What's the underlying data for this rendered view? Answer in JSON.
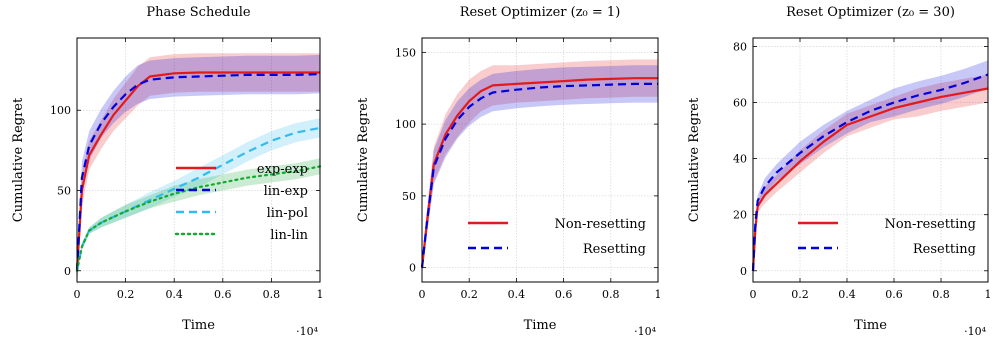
{
  "chart_data": [
    {
      "type": "line",
      "title": "Phase Schedule",
      "xlabel": "Time",
      "ylabel": "Cumulative Regret",
      "x_multiplier": "·10⁴",
      "xlim": [
        0,
        1
      ],
      "ylim": [
        -7,
        145
      ],
      "xticks": [
        "0",
        "0.2",
        "0.4",
        "0.6",
        "0.8",
        "1"
      ],
      "yticks": [
        0,
        50,
        100
      ],
      "grid": true,
      "legend_position": "bottom-right",
      "series": [
        {
          "name": "exp-exp",
          "color": "#e31a1c",
          "dash": "solid",
          "x": [
            0,
            0.02,
            0.05,
            0.1,
            0.15,
            0.2,
            0.25,
            0.3,
            0.4,
            0.5,
            0.6,
            0.7,
            0.8,
            0.9,
            1.0
          ],
          "y": [
            0,
            50,
            72,
            85,
            97,
            106,
            115,
            121,
            123,
            123.5,
            123.5,
            123.5,
            123.5,
            123.5,
            123.5
          ],
          "band": [
            10,
            10,
            9,
            9,
            10,
            11,
            12,
            12,
            12,
            12,
            12,
            12,
            12,
            12,
            12
          ]
        },
        {
          "name": "lin-exp",
          "color": "#0000dd",
          "dash": "dash",
          "x": [
            0,
            0.02,
            0.05,
            0.1,
            0.15,
            0.2,
            0.25,
            0.3,
            0.4,
            0.5,
            0.6,
            0.7,
            0.8,
            0.9,
            1.0
          ],
          "y": [
            0,
            58,
            78,
            92,
            102,
            110,
            116,
            119,
            120.5,
            121,
            121.5,
            122,
            122,
            122,
            122.5
          ],
          "band": [
            10,
            10,
            9,
            9,
            10,
            11,
            12,
            12,
            12,
            12,
            12,
            12,
            12,
            12,
            12
          ]
        },
        {
          "name": "lin-pol",
          "color": "#33bbee",
          "dash": "dash",
          "x": [
            0,
            0.02,
            0.05,
            0.1,
            0.2,
            0.3,
            0.4,
            0.5,
            0.6,
            0.7,
            0.8,
            0.9,
            1.0
          ],
          "y": [
            0,
            15,
            25,
            30,
            37,
            44,
            51,
            58,
            66,
            74,
            81,
            86,
            89
          ],
          "band": [
            2,
            2,
            2,
            3,
            4,
            5,
            5,
            6,
            6,
            6,
            6,
            6,
            6
          ]
        },
        {
          "name": "lin-lin",
          "color": "#11aa33",
          "dash": "dot",
          "x": [
            0,
            0.02,
            0.05,
            0.1,
            0.2,
            0.3,
            0.4,
            0.5,
            0.6,
            0.7,
            0.8,
            0.9,
            1.0
          ],
          "y": [
            0,
            15,
            25,
            30,
            37,
            43,
            48,
            52,
            55,
            58,
            60,
            62,
            65
          ],
          "band": [
            2,
            2,
            2,
            3,
            4,
            4,
            5,
            5,
            5,
            5,
            5,
            5,
            5
          ]
        }
      ]
    },
    {
      "type": "line",
      "title": "Reset Optimizer (z₀ = 1)",
      "xlabel": "Time",
      "ylabel": "Cumulative Regret",
      "x_multiplier": "·10⁴",
      "xlim": [
        0,
        1
      ],
      "ylim": [
        -10,
        160
      ],
      "xticks": [
        "0",
        "0.2",
        "0.4",
        "0.6",
        "0.8",
        "1"
      ],
      "yticks": [
        0,
        50,
        100,
        150
      ],
      "grid": true,
      "legend_position": "bottom-right",
      "series": [
        {
          "name": "Non-resetting",
          "color": "#e31a1c",
          "dash": "solid",
          "x": [
            0,
            0.02,
            0.05,
            0.1,
            0.15,
            0.2,
            0.25,
            0.3,
            0.4,
            0.5,
            0.6,
            0.7,
            0.8,
            0.9,
            1.0
          ],
          "y": [
            0,
            30,
            72,
            93,
            106,
            116,
            123,
            127,
            128,
            129,
            130,
            131,
            131.5,
            132,
            132
          ],
          "band": [
            5,
            8,
            12,
            14,
            15,
            15,
            14,
            14,
            13,
            13,
            13,
            13,
            13,
            13,
            13
          ]
        },
        {
          "name": "Resetting",
          "color": "#0000dd",
          "dash": "dash",
          "x": [
            0,
            0.02,
            0.05,
            0.1,
            0.15,
            0.2,
            0.25,
            0.3,
            0.4,
            0.5,
            0.6,
            0.7,
            0.8,
            0.9,
            1.0
          ],
          "y": [
            0,
            30,
            70,
            90,
            103,
            112,
            118,
            122,
            124,
            125.5,
            126.5,
            127,
            127.5,
            128,
            128
          ],
          "band": [
            5,
            8,
            12,
            13,
            13,
            13,
            13,
            13,
            13,
            13,
            13,
            13,
            13,
            13,
            13
          ]
        }
      ]
    },
    {
      "type": "line",
      "title": "Reset Optimizer (z₀ = 30)",
      "xlabel": "Time",
      "ylabel": "Cumulative Regret",
      "x_multiplier": "·10⁴",
      "xlim": [
        0,
        1
      ],
      "ylim": [
        -4,
        83
      ],
      "xticks": [
        "0",
        "0.2",
        "0.4",
        "0.6",
        "0.8",
        "1"
      ],
      "yticks": [
        0,
        20,
        40,
        60,
        80
      ],
      "grid": true,
      "legend_position": "bottom-right",
      "series": [
        {
          "name": "Non-resetting",
          "color": "#e31a1c",
          "dash": "solid",
          "x": [
            0,
            0.01,
            0.02,
            0.05,
            0.1,
            0.2,
            0.3,
            0.4,
            0.5,
            0.6,
            0.7,
            0.8,
            0.9,
            1.0
          ],
          "y": [
            0,
            15,
            23,
            27,
            31,
            39,
            46,
            52,
            55,
            58,
            60,
            62,
            63.5,
            65
          ],
          "band": [
            1,
            2,
            2,
            3,
            3,
            4,
            4,
            4,
            4,
            4,
            5,
            5,
            5,
            5
          ]
        },
        {
          "name": "Resetting",
          "color": "#0000dd",
          "dash": "dash",
          "x": [
            0,
            0.01,
            0.02,
            0.05,
            0.1,
            0.2,
            0.3,
            0.4,
            0.5,
            0.6,
            0.7,
            0.8,
            0.9,
            1.0
          ],
          "y": [
            0,
            17,
            25,
            30,
            35,
            42,
            48,
            53,
            57,
            60,
            62.5,
            64.5,
            67,
            70
          ],
          "band": [
            1,
            2,
            2,
            3,
            3,
            4,
            4,
            4,
            4,
            5,
            5,
            5,
            5,
            5
          ]
        }
      ]
    }
  ]
}
